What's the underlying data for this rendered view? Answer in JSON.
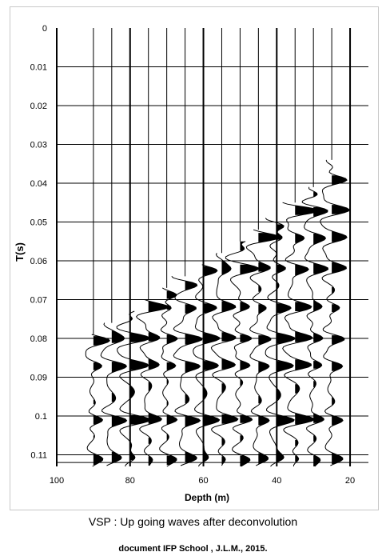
{
  "chart_data": {
    "type": "seismic-wiggle",
    "ylabel": "T(s)",
    "xlabel": "Depth (m)",
    "y_ticks": [
      0,
      0.01,
      0.02,
      0.03,
      0.04,
      0.05,
      0.06,
      0.07,
      0.08,
      0.09,
      0.1,
      0.11
    ],
    "x_ticks": [
      100,
      80,
      60,
      40,
      20
    ],
    "xlim": [
      100,
      15
    ],
    "ylim": [
      0,
      0.113
    ],
    "gridline_times": [
      0.01,
      0.02,
      0.03,
      0.04,
      0.05,
      0.06,
      0.07,
      0.08,
      0.09,
      0.1,
      0.11,
      0.112
    ],
    "trace_depths": [
      90,
      85,
      80,
      75,
      70,
      65,
      60,
      55,
      50,
      45,
      40,
      35,
      30,
      25
    ],
    "first_arrival_times": [
      0.079,
      0.076,
      0.073,
      0.07,
      0.067,
      0.064,
      0.061,
      0.058,
      0.055,
      0.052,
      0.049,
      0.045,
      0.041,
      0.034
    ],
    "reflector_times": [
      0.039,
      0.047,
      0.054,
      0.062,
      0.072,
      0.08,
      0.087,
      0.101,
      0.111
    ],
    "grid": true,
    "style": "black-fill wiggle traces"
  },
  "captions": {
    "title": "VSP : Up going waves after deconvolution",
    "credit": "document IFP School , J.L.M., 2015."
  }
}
